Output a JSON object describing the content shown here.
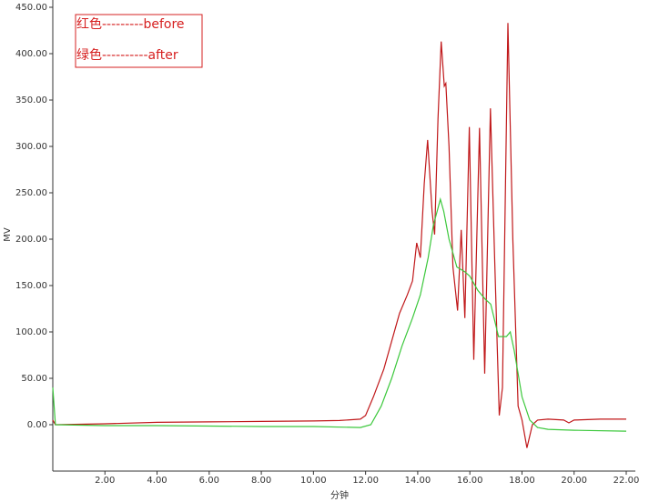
{
  "chart_data": {
    "type": "line",
    "y_label": "MV",
    "x_label": "分钟",
    "xlim": [
      0,
      22
    ],
    "ylim": [
      -50,
      450
    ],
    "xticks": [
      {
        "value": 2,
        "label": "2.00"
      },
      {
        "value": 4,
        "label": "4.00"
      },
      {
        "value": 6,
        "label": "6.00"
      },
      {
        "value": 8,
        "label": "8.00"
      },
      {
        "value": 10,
        "label": "10.00"
      },
      {
        "value": 12,
        "label": "12.00"
      },
      {
        "value": 14,
        "label": "14.00"
      },
      {
        "value": 16,
        "label": "16.00"
      },
      {
        "value": 18,
        "label": "18.00"
      },
      {
        "value": 20,
        "label": "20.00"
      },
      {
        "value": 22,
        "label": "22.00"
      }
    ],
    "yticks": [
      {
        "value": 0,
        "label": "0.00"
      },
      {
        "value": 50,
        "label": "50.00"
      },
      {
        "value": 100,
        "label": "100.00"
      },
      {
        "value": 150,
        "label": "150.00"
      },
      {
        "value": 200,
        "label": "200.00"
      },
      {
        "value": 250,
        "label": "250.00"
      },
      {
        "value": 300,
        "label": "300.00"
      },
      {
        "value": 350,
        "label": "350.00"
      },
      {
        "value": 400,
        "label": "400.00"
      },
      {
        "value": 450,
        "label": "450.00"
      }
    ],
    "series": [
      {
        "name": "红色---------before",
        "color": "#c0181a",
        "x": [
          0,
          0.1,
          2,
          4,
          6,
          8,
          10,
          11,
          11.8,
          12,
          12.3,
          12.7,
          13,
          13.3,
          13.6,
          13.8,
          13.96,
          14.1,
          14.25,
          14.38,
          14.55,
          14.65,
          14.78,
          14.9,
          15.02,
          15.08,
          15.2,
          15.35,
          15.53,
          15.67,
          15.81,
          15.98,
          16.15,
          16.37,
          16.57,
          16.79,
          16.95,
          17.13,
          17.25,
          17.46,
          17.65,
          17.85,
          18.0,
          18.19,
          18.4,
          18.6,
          19,
          19.6,
          19.8,
          20,
          21,
          22
        ],
        "values": [
          5,
          0,
          1,
          2.5,
          3,
          3.5,
          4,
          4.5,
          6,
          10,
          30,
          60,
          90,
          120,
          140,
          155,
          196,
          180,
          260,
          307,
          230,
          205,
          330,
          413,
          365,
          368,
          300,
          170,
          123,
          210,
          115,
          321,
          70,
          320,
          55,
          341,
          180,
          10,
          40,
          433,
          200,
          20,
          5,
          -25,
          0,
          5,
          6,
          5,
          2,
          5,
          6,
          6
        ]
      },
      {
        "name": "绿色----------after",
        "color": "#3cc83c",
        "x": [
          0,
          0.1,
          2,
          4,
          6,
          8,
          10,
          11.8,
          12.2,
          12.6,
          13,
          13.4,
          13.8,
          14.1,
          14.4,
          14.6,
          14.87,
          15.0,
          15.2,
          15.5,
          15.8,
          16.0,
          16.3,
          16.6,
          16.8,
          17.1,
          17.4,
          17.55,
          17.7,
          18.0,
          18.3,
          18.6,
          19,
          20,
          22
        ],
        "values": [
          40,
          0,
          -1,
          -1,
          -1.5,
          -2,
          -2,
          -3,
          0,
          20,
          50,
          85,
          115,
          140,
          180,
          215,
          243,
          230,
          200,
          170,
          165,
          160,
          145,
          135,
          130,
          95,
          95,
          100,
          80,
          30,
          5,
          -3,
          -5,
          -6,
          -7
        ]
      }
    ]
  }
}
